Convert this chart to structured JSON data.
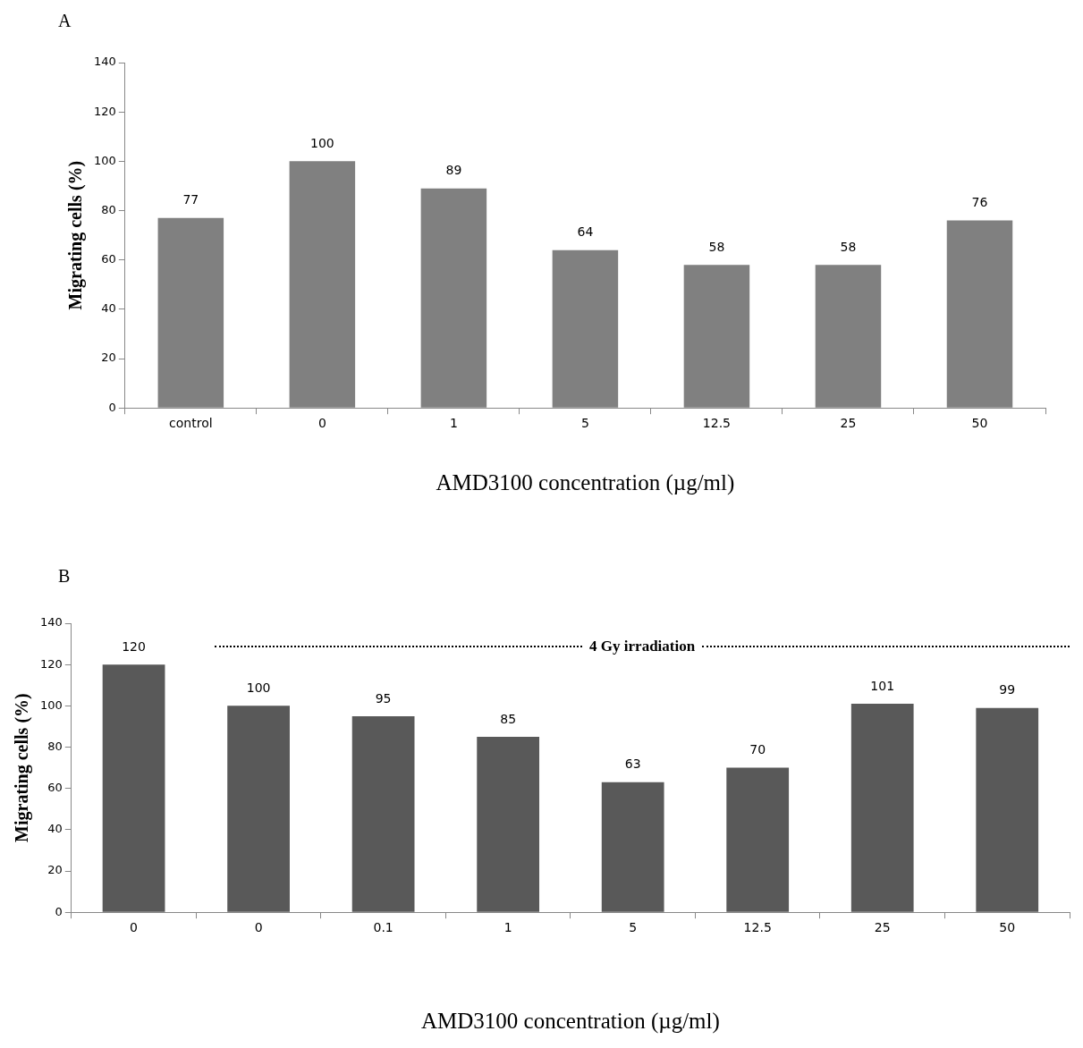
{
  "chart_data": [
    {
      "type": "bar",
      "title": "A",
      "ylabel": "Migrating cells (%)",
      "xlabel": "AMD3100 concentration (µg/ml)",
      "categories": [
        "control",
        "0",
        "1",
        "5",
        "12.5",
        "25",
        "50"
      ],
      "values": [
        77,
        100,
        89,
        64,
        58,
        58,
        76
      ],
      "color": "#808080",
      "ylim": [
        0,
        140
      ],
      "yticks": [
        0,
        20,
        40,
        60,
        80,
        100,
        120,
        140
      ],
      "grid": false,
      "data_labels": true
    },
    {
      "type": "bar",
      "title": "B",
      "ylabel": "Migrating cells (%)",
      "xlabel": "AMD3100 concentration (µg/ml)",
      "categories": [
        "0",
        "0",
        "0.1",
        "1",
        "5",
        "12.5",
        "25",
        "50"
      ],
      "values": [
        120,
        100,
        95,
        85,
        63,
        70,
        101,
        99
      ],
      "color": "#595959",
      "ylim": [
        0,
        140
      ],
      "yticks": [
        0,
        20,
        40,
        60,
        80,
        100,
        120,
        140
      ],
      "grid": false,
      "data_labels": true,
      "annotations": [
        "4 Gy irradiation"
      ]
    }
  ]
}
